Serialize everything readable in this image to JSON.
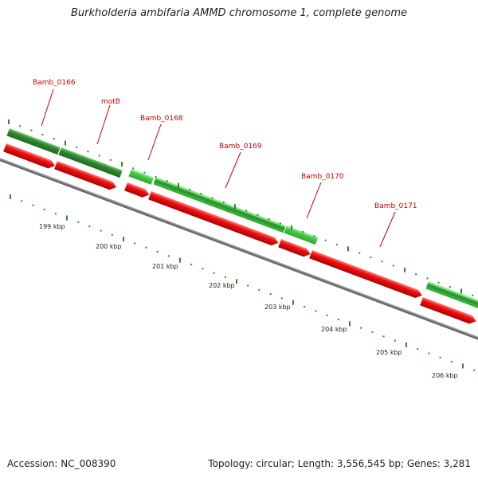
{
  "title": "Burkholderia ambifaria AMMD chromosome 1, complete genome",
  "footer": {
    "accession": "Accession: NC_008390",
    "info": "Topology: circular; Length: 3,556,545 bp; Genes: 3,281"
  },
  "genes": [
    "Bamb_0166",
    "motB",
    "Bamb_0168",
    "Bamb_0169",
    "Bamb_0170",
    "Bamb_0171"
  ],
  "kbp_labels": [
    "199 kbp",
    "200 kbp",
    "201 kbp",
    "202 kbp",
    "203 kbp",
    "204 kbp",
    "205 kbp",
    "206 kbp"
  ],
  "colors": {
    "gene_dark": "#2e8b2e",
    "gene_light": "#44cc44",
    "cds_red": "#ee1111",
    "backbone": "#888888",
    "label_red": "#cc0000",
    "tick_green": "#2a8a2a"
  }
}
